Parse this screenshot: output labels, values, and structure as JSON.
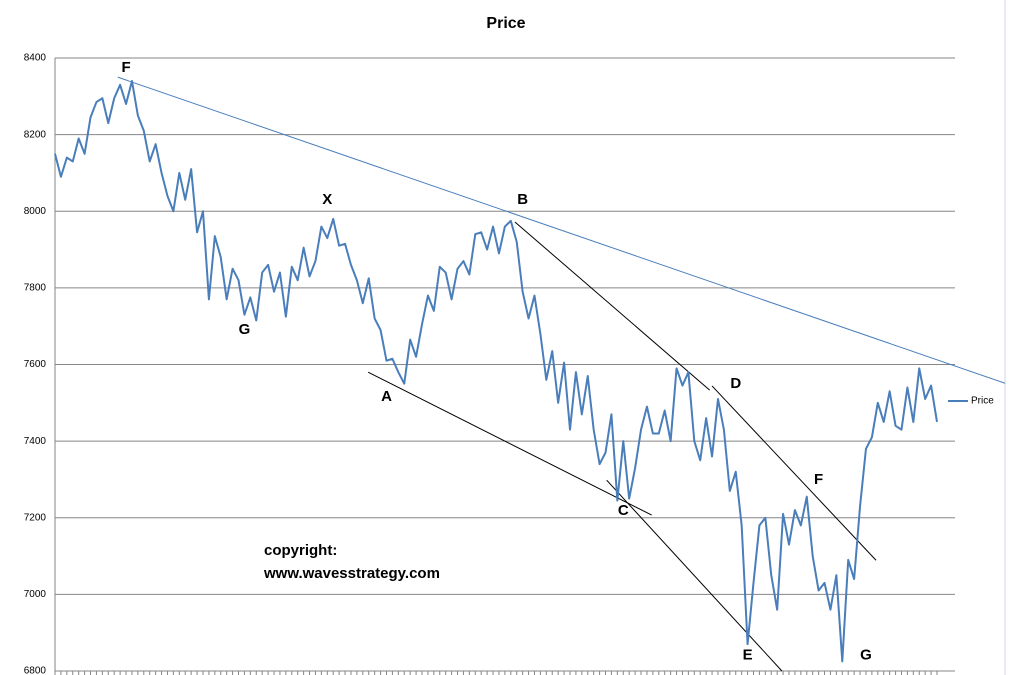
{
  "chart_data": {
    "type": "line",
    "title": "Price",
    "series": [
      {
        "name": "Price",
        "color": "#4a7ebb",
        "values": [
          8150,
          8090,
          8140,
          8130,
          8190,
          8150,
          8245,
          8285,
          8295,
          8230,
          8295,
          8330,
          8280,
          8340,
          8250,
          8210,
          8130,
          8175,
          8100,
          8040,
          8000,
          8100,
          8030,
          8110,
          7945,
          8000,
          7770,
          7935,
          7880,
          7770,
          7850,
          7820,
          7730,
          7775,
          7715,
          7840,
          7860,
          7790,
          7840,
          7725,
          7855,
          7820,
          7905,
          7830,
          7870,
          7960,
          7930,
          7980,
          7910,
          7915,
          7860,
          7820,
          7760,
          7825,
          7720,
          7690,
          7610,
          7615,
          7580,
          7550,
          7665,
          7620,
          7705,
          7780,
          7740,
          7855,
          7840,
          7770,
          7850,
          7870,
          7835,
          7940,
          7945,
          7900,
          7960,
          7890,
          7960,
          7975,
          7920,
          7790,
          7720,
          7780,
          7680,
          7560,
          7635,
          7500,
          7605,
          7430,
          7580,
          7470,
          7570,
          7430,
          7340,
          7370,
          7470,
          7245,
          7400,
          7250,
          7330,
          7430,
          7490,
          7420,
          7420,
          7480,
          7400,
          7590,
          7545,
          7580,
          7400,
          7350,
          7460,
          7360,
          7510,
          7430,
          7270,
          7320,
          7180,
          6870,
          7030,
          7180,
          7200,
          7050,
          6960,
          7210,
          7130,
          7220,
          7180,
          7255,
          7100,
          7010,
          7030,
          6960,
          7050,
          6825,
          7090,
          7040,
          7230,
          7380,
          7410,
          7500,
          7450,
          7530,
          7440,
          7430,
          7540,
          7450,
          7590,
          7510,
          7545,
          7450
        ]
      }
    ],
    "ylim": [
      6800,
      8400
    ],
    "yticks": [
      6800,
      7000,
      7200,
      7400,
      7600,
      7800,
      8000,
      8200,
      8400
    ],
    "grid": true,
    "legend": "right",
    "trendlines": [
      {
        "color": "#4a7ebb",
        "x": [
          10.6,
          160.5
        ],
        "values": [
          8350,
          7551
        ]
      },
      {
        "color": "#000000",
        "x": [
          52.9,
          100.8
        ],
        "values": [
          7580,
          7207
        ]
      },
      {
        "color": "#000000",
        "x": [
          77.7,
          110.6
        ],
        "values": [
          7972,
          7533
        ]
      },
      {
        "color": "#000000",
        "x": [
          93.2,
          122.8
        ],
        "values": [
          7298,
          6800
        ]
      },
      {
        "color": "#000000",
        "x": [
          111,
          138.7
        ],
        "values": [
          7544,
          7089
        ]
      }
    ],
    "annotations": [
      {
        "text": "F",
        "x": 12,
        "y": 8374
      },
      {
        "text": "G",
        "x": 32,
        "y": 7690
      },
      {
        "text": "X",
        "x": 46,
        "y": 8029
      },
      {
        "text": "A",
        "x": 56,
        "y": 7515
      },
      {
        "text": "B",
        "x": 79,
        "y": 8029
      },
      {
        "text": "C",
        "x": 96,
        "y": 7217
      },
      {
        "text": "D",
        "x": 115,
        "y": 7549
      },
      {
        "text": "E",
        "x": 117,
        "y": 6841
      },
      {
        "text": "F",
        "x": 129,
        "y": 7298
      },
      {
        "text": "G",
        "x": 137,
        "y": 6841
      }
    ],
    "watermark": [
      "copyright:",
      "www.wavesstrategy.com"
    ]
  }
}
